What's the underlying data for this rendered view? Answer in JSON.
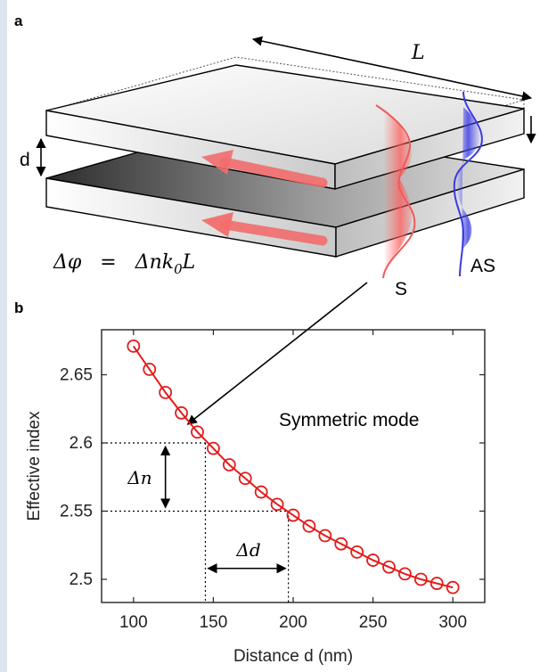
{
  "panels": {
    "a": "a",
    "b": "b"
  },
  "schematic": {
    "length_label": "L",
    "gap_label": "d",
    "phase_equation": {
      "lhs": "Δφ",
      "eq": "=",
      "rhs_main": "Δnk",
      "rhs_sub": "0",
      "rhs_end": "L"
    },
    "mode_labels": {
      "symmetric": "S",
      "antisymmetric": "AS"
    },
    "colors": {
      "symmetric": "#f05a5a",
      "antisymmetric": "#3a3ae0",
      "arrow": "#f26d6d"
    }
  },
  "chart_data": {
    "type": "line",
    "title": "",
    "xlabel": "Distance d (nm)",
    "ylabel": "Effective index",
    "xlim": [
      80,
      320
    ],
    "ylim": [
      2.483,
      2.683
    ],
    "xticks": [
      100,
      150,
      200,
      250,
      300
    ],
    "yticks": [
      2.5,
      2.55,
      2.6,
      2.65
    ],
    "ytick_labels": [
      "2.5",
      "2.55",
      "2.6",
      "2.65"
    ],
    "series": [
      {
        "color": "#e31b1b",
        "marker": "open-circle",
        "x": [
          100,
          110,
          120,
          130,
          140,
          150,
          160,
          170,
          180,
          190,
          200,
          210,
          220,
          230,
          240,
          250,
          260,
          270,
          280,
          290,
          300
        ],
        "y": [
          2.671,
          2.654,
          2.637,
          2.622,
          2.608,
          2.596,
          2.584,
          2.574,
          2.564,
          2.555,
          2.547,
          2.539,
          2.532,
          2.526,
          2.52,
          2.514,
          2.509,
          2.504,
          2.5,
          2.497,
          2.494
        ]
      }
    ],
    "annotations": {
      "mode_text": "Symmetric mode",
      "delta_n": "Δn",
      "delta_d": "Δd",
      "guide_x": [
        145,
        197
      ],
      "guide_y": [
        2.6,
        2.55
      ],
      "pointer_target": {
        "x": 135,
        "y": 2.615
      }
    },
    "grid": false,
    "legend": "none"
  }
}
